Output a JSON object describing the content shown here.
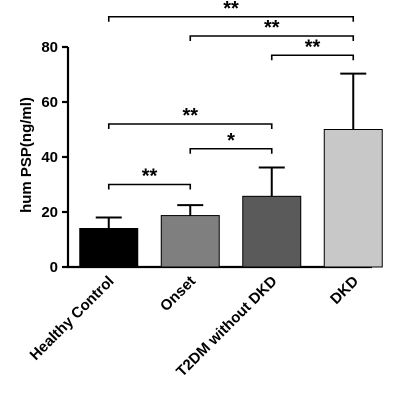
{
  "chart_data": {
    "type": "bar",
    "ylabel": "hum PSP(ng/ml)",
    "ylim": [
      0,
      80
    ],
    "yticks": [
      0,
      20,
      40,
      60,
      80
    ],
    "categories": [
      "Healthy Control",
      "Onset",
      "T2DM without DKD",
      "DKD"
    ],
    "values": [
      14,
      18.7,
      25.7,
      50
    ],
    "errors": [
      4,
      3.8,
      10.5,
      20.3
    ],
    "colors": [
      "#000000",
      "#7f7f7f",
      "#5a5a5a",
      "#c8c8c8"
    ],
    "significance": [
      {
        "from": 0,
        "to": 1,
        "label": "**",
        "y": 30
      },
      {
        "from": 1,
        "to": 2,
        "label": "*",
        "y": 43
      },
      {
        "from": 0,
        "to": 2,
        "label": "**",
        "y": 52
      },
      {
        "from": 2,
        "to": 3,
        "label": "**",
        "y": 77
      },
      {
        "from": 1,
        "to": 3,
        "label": "**",
        "y": 84
      },
      {
        "from": 0,
        "to": 3,
        "label": "**",
        "y": 91
      }
    ],
    "grid": false
  }
}
